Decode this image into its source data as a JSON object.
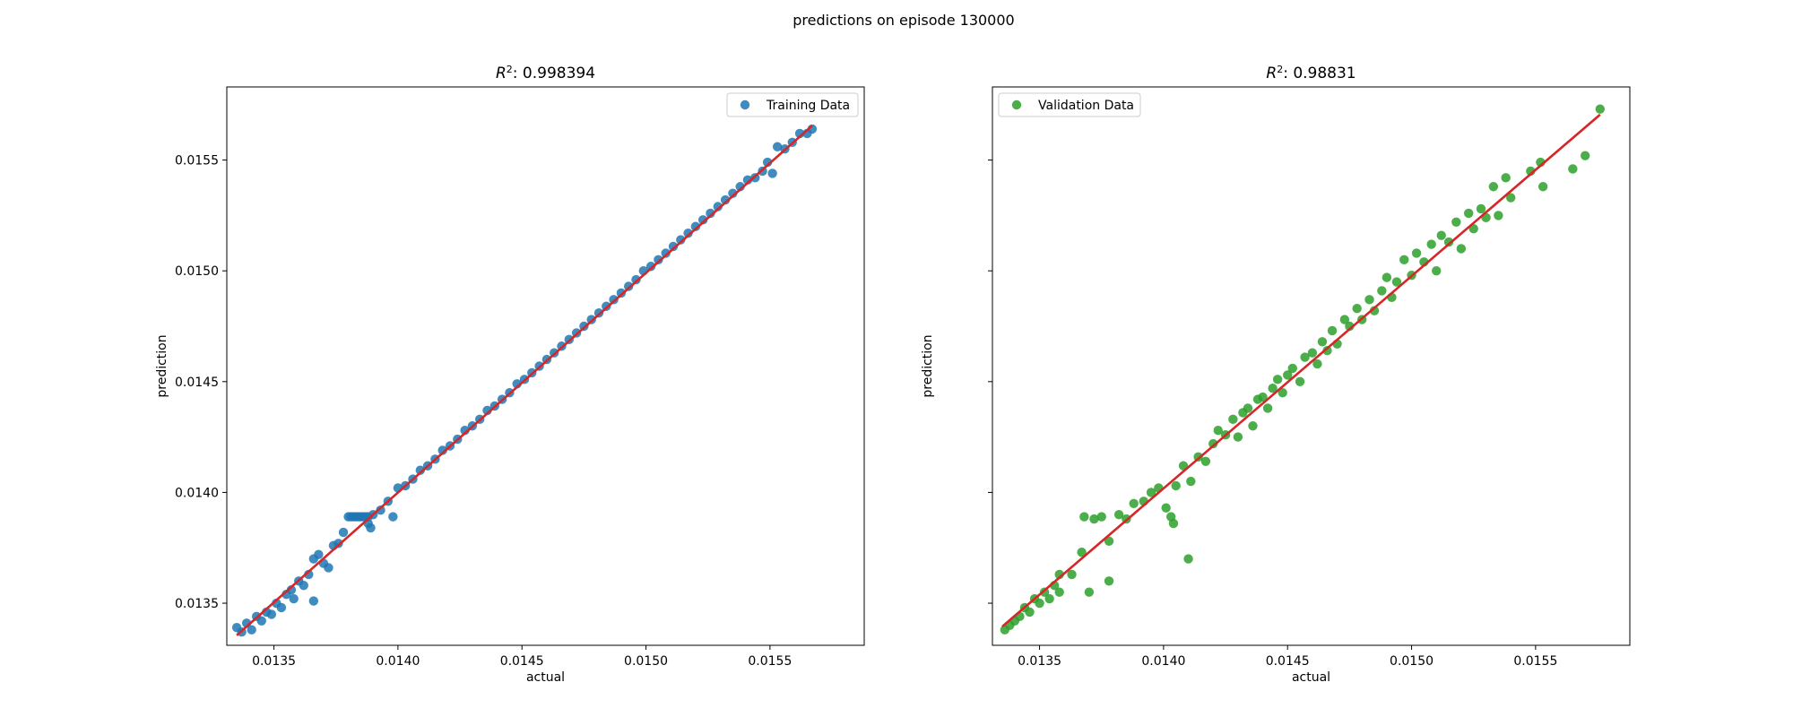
{
  "figure": {
    "suptitle": "predictions on episode 130000"
  },
  "chart_data": [
    {
      "type": "scatter",
      "title_prefix": "R",
      "title_sup": "2",
      "title_value": ": 0.998394",
      "xlabel": "actual",
      "ylabel": "prediction",
      "xlim": [
        0.01331,
        0.01588
      ],
      "ylim": [
        0.01331,
        0.01583
      ],
      "xticks": [
        "0.0135",
        "0.0140",
        "0.0145",
        "0.0150",
        "0.0155"
      ],
      "yticks": [
        "0.0135",
        "0.0140",
        "0.0145",
        "0.0150",
        "0.0155"
      ],
      "show_ytick_labels": true,
      "legend": {
        "label": "Training Data",
        "position": "top-right"
      },
      "point_color": "#1f77b4",
      "fit_line_color": "#d62728",
      "fit_line": {
        "x": [
          0.01335,
          0.01567
        ],
        "y": [
          0.013355,
          0.015655
        ]
      },
      "series": [
        {
          "name": "Training Data",
          "points": [
            [
              0.01335,
              0.01339
            ],
            [
              0.01337,
              0.01337
            ],
            [
              0.01339,
              0.01341
            ],
            [
              0.01341,
              0.01338
            ],
            [
              0.01343,
              0.01344
            ],
            [
              0.01345,
              0.01342
            ],
            [
              0.01347,
              0.01346
            ],
            [
              0.01349,
              0.01345
            ],
            [
              0.01351,
              0.0135
            ],
            [
              0.01353,
              0.01348
            ],
            [
              0.01355,
              0.01354
            ],
            [
              0.01357,
              0.01356
            ],
            [
              0.01358,
              0.01352
            ],
            [
              0.0136,
              0.0136
            ],
            [
              0.01362,
              0.01358
            ],
            [
              0.01364,
              0.01363
            ],
            [
              0.01366,
              0.0137
            ],
            [
              0.01366,
              0.01351
            ],
            [
              0.01368,
              0.01372
            ],
            [
              0.0137,
              0.01368
            ],
            [
              0.01372,
              0.01366
            ],
            [
              0.01374,
              0.01376
            ],
            [
              0.01376,
              0.01377
            ],
            [
              0.01378,
              0.01382
            ],
            [
              0.0138,
              0.01389
            ],
            [
              0.01381,
              0.01389
            ],
            [
              0.01382,
              0.01389
            ],
            [
              0.01383,
              0.01389
            ],
            [
              0.01384,
              0.01389
            ],
            [
              0.01385,
              0.01389
            ],
            [
              0.01386,
              0.01389
            ],
            [
              0.01387,
              0.01389
            ],
            [
              0.01388,
              0.01389
            ],
            [
              0.01389,
              0.01384
            ],
            [
              0.01388,
              0.01386
            ],
            [
              0.0139,
              0.0139
            ],
            [
              0.01393,
              0.01392
            ],
            [
              0.01396,
              0.01396
            ],
            [
              0.01398,
              0.01389
            ],
            [
              0.014,
              0.01402
            ],
            [
              0.01403,
              0.01403
            ],
            [
              0.01406,
              0.01406
            ],
            [
              0.01409,
              0.0141
            ],
            [
              0.01412,
              0.01412
            ],
            [
              0.01415,
              0.01415
            ],
            [
              0.01418,
              0.01419
            ],
            [
              0.01421,
              0.01421
            ],
            [
              0.01424,
              0.01424
            ],
            [
              0.01427,
              0.01428
            ],
            [
              0.0143,
              0.0143
            ],
            [
              0.01433,
              0.01433
            ],
            [
              0.01436,
              0.01437
            ],
            [
              0.01439,
              0.01439
            ],
            [
              0.01442,
              0.01442
            ],
            [
              0.01445,
              0.01445
            ],
            [
              0.01448,
              0.01449
            ],
            [
              0.01451,
              0.01451
            ],
            [
              0.01454,
              0.01454
            ],
            [
              0.01457,
              0.01457
            ],
            [
              0.0146,
              0.0146
            ],
            [
              0.01463,
              0.01463
            ],
            [
              0.01466,
              0.01466
            ],
            [
              0.01469,
              0.01469
            ],
            [
              0.01472,
              0.01472
            ],
            [
              0.01475,
              0.01475
            ],
            [
              0.01478,
              0.01478
            ],
            [
              0.01481,
              0.01481
            ],
            [
              0.01484,
              0.01484
            ],
            [
              0.01487,
              0.01487
            ],
            [
              0.0149,
              0.0149
            ],
            [
              0.01493,
              0.01493
            ],
            [
              0.01496,
              0.01496
            ],
            [
              0.01499,
              0.015
            ],
            [
              0.01502,
              0.01502
            ],
            [
              0.01505,
              0.01505
            ],
            [
              0.01508,
              0.01508
            ],
            [
              0.01511,
              0.01511
            ],
            [
              0.01514,
              0.01514
            ],
            [
              0.01517,
              0.01517
            ],
            [
              0.0152,
              0.0152
            ],
            [
              0.01523,
              0.01523
            ],
            [
              0.01526,
              0.01526
            ],
            [
              0.01529,
              0.01529
            ],
            [
              0.01532,
              0.01532
            ],
            [
              0.01535,
              0.01535
            ],
            [
              0.01538,
              0.01538
            ],
            [
              0.01541,
              0.01541
            ],
            [
              0.01544,
              0.01542
            ],
            [
              0.01547,
              0.01545
            ],
            [
              0.01549,
              0.01549
            ],
            [
              0.01551,
              0.01544
            ],
            [
              0.01553,
              0.01556
            ],
            [
              0.01556,
              0.01555
            ],
            [
              0.01559,
              0.01558
            ],
            [
              0.01562,
              0.01562
            ],
            [
              0.01565,
              0.01562
            ],
            [
              0.01567,
              0.01564
            ]
          ]
        }
      ]
    },
    {
      "type": "scatter",
      "title_prefix": "R",
      "title_sup": "2",
      "title_value": ": 0.98831",
      "xlabel": "actual",
      "ylabel": "prediction",
      "xlim": [
        0.01331,
        0.01588
      ],
      "ylim": [
        0.01331,
        0.01583
      ],
      "xticks": [
        "0.0135",
        "0.0140",
        "0.0145",
        "0.0150",
        "0.0155"
      ],
      "yticks": [
        "0.0135",
        "0.0140",
        "0.0145",
        "0.0150",
        "0.0155"
      ],
      "show_ytick_labels": false,
      "legend": {
        "label": "Validation Data",
        "position": "top-left"
      },
      "point_color": "#2ca02c",
      "fit_line_color": "#d62728",
      "fit_line": {
        "x": [
          0.01335,
          0.01576
        ],
        "y": [
          0.013395,
          0.015705
        ]
      },
      "series": [
        {
          "name": "Validation Data",
          "points": [
            [
              0.01336,
              0.01338
            ],
            [
              0.01338,
              0.0134
            ],
            [
              0.0134,
              0.01342
            ],
            [
              0.01342,
              0.01344
            ],
            [
              0.01344,
              0.01348
            ],
            [
              0.01346,
              0.01346
            ],
            [
              0.01348,
              0.01352
            ],
            [
              0.0135,
              0.0135
            ],
            [
              0.01352,
              0.01355
            ],
            [
              0.01354,
              0.01352
            ],
            [
              0.01356,
              0.01358
            ],
            [
              0.01358,
              0.01355
            ],
            [
              0.01358,
              0.01363
            ],
            [
              0.01363,
              0.01363
            ],
            [
              0.01367,
              0.01373
            ],
            [
              0.01368,
              0.01389
            ],
            [
              0.0137,
              0.01355
            ],
            [
              0.01372,
              0.01388
            ],
            [
              0.01375,
              0.01389
            ],
            [
              0.01378,
              0.01378
            ],
            [
              0.01378,
              0.0136
            ],
            [
              0.01382,
              0.0139
            ],
            [
              0.01385,
              0.01388
            ],
            [
              0.01388,
              0.01395
            ],
            [
              0.01392,
              0.01396
            ],
            [
              0.01395,
              0.014
            ],
            [
              0.01398,
              0.01402
            ],
            [
              0.01401,
              0.01393
            ],
            [
              0.01403,
              0.01389
            ],
            [
              0.01404,
              0.01386
            ],
            [
              0.01405,
              0.01403
            ],
            [
              0.01408,
              0.01412
            ],
            [
              0.0141,
              0.0137
            ],
            [
              0.01411,
              0.01405
            ],
            [
              0.01414,
              0.01416
            ],
            [
              0.01417,
              0.01414
            ],
            [
              0.0142,
              0.01422
            ],
            [
              0.01422,
              0.01428
            ],
            [
              0.01425,
              0.01426
            ],
            [
              0.01428,
              0.01433
            ],
            [
              0.0143,
              0.01425
            ],
            [
              0.01432,
              0.01436
            ],
            [
              0.01434,
              0.01438
            ],
            [
              0.01436,
              0.0143
            ],
            [
              0.01438,
              0.01442
            ],
            [
              0.0144,
              0.01443
            ],
            [
              0.01442,
              0.01438
            ],
            [
              0.01444,
              0.01447
            ],
            [
              0.01446,
              0.01451
            ],
            [
              0.01448,
              0.01445
            ],
            [
              0.0145,
              0.01453
            ],
            [
              0.01452,
              0.01456
            ],
            [
              0.01455,
              0.0145
            ],
            [
              0.01457,
              0.01461
            ],
            [
              0.0146,
              0.01463
            ],
            [
              0.01462,
              0.01458
            ],
            [
              0.01464,
              0.01468
            ],
            [
              0.01466,
              0.01464
            ],
            [
              0.01468,
              0.01473
            ],
            [
              0.0147,
              0.01467
            ],
            [
              0.01473,
              0.01478
            ],
            [
              0.01475,
              0.01475
            ],
            [
              0.01478,
              0.01483
            ],
            [
              0.0148,
              0.01478
            ],
            [
              0.01483,
              0.01487
            ],
            [
              0.01485,
              0.01482
            ],
            [
              0.01488,
              0.01491
            ],
            [
              0.0149,
              0.01497
            ],
            [
              0.01492,
              0.01488
            ],
            [
              0.01494,
              0.01495
            ],
            [
              0.01497,
              0.01505
            ],
            [
              0.015,
              0.01498
            ],
            [
              0.01502,
              0.01508
            ],
            [
              0.01505,
              0.01504
            ],
            [
              0.01508,
              0.01512
            ],
            [
              0.0151,
              0.015
            ],
            [
              0.01512,
              0.01516
            ],
            [
              0.01515,
              0.01513
            ],
            [
              0.01518,
              0.01522
            ],
            [
              0.0152,
              0.0151
            ],
            [
              0.01523,
              0.01526
            ],
            [
              0.01525,
              0.01519
            ],
            [
              0.01528,
              0.01528
            ],
            [
              0.0153,
              0.01524
            ],
            [
              0.01533,
              0.01538
            ],
            [
              0.01535,
              0.01525
            ],
            [
              0.01538,
              0.01542
            ],
            [
              0.0154,
              0.01533
            ],
            [
              0.01548,
              0.01545
            ],
            [
              0.01552,
              0.01549
            ],
            [
              0.01553,
              0.01538
            ],
            [
              0.01565,
              0.01546
            ],
            [
              0.0157,
              0.01552
            ],
            [
              0.01576,
              0.01573
            ]
          ]
        }
      ]
    }
  ]
}
